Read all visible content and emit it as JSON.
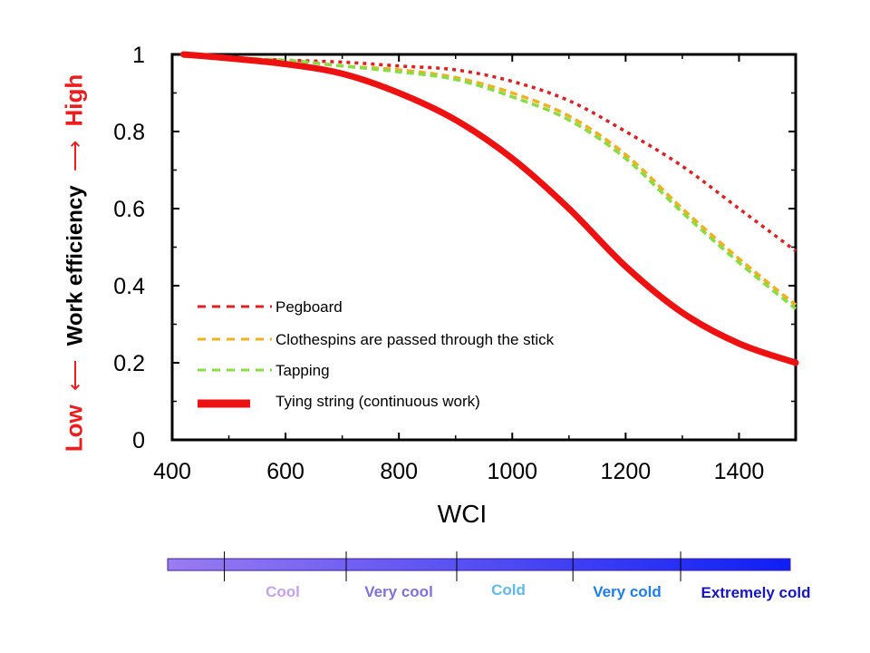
{
  "chart_data": {
    "type": "line",
    "xlabel": "WCI",
    "xlim": [
      400,
      1500
    ],
    "ylim": [
      0,
      1
    ],
    "xticks": [
      400,
      600,
      800,
      1000,
      1200,
      1400
    ],
    "yticks": [
      0,
      0.2,
      0.4,
      0.6,
      0.8,
      1
    ],
    "ylabel": {
      "low": "Low",
      "arrow_low": "⟵",
      "middle": "Work efficiency",
      "arrow_high": "⟶",
      "high": "High"
    },
    "legend_position": "lower-left",
    "series": [
      {
        "name": "Pegboard",
        "color": "#e02020",
        "style": "dotted",
        "x": [
          420,
          500,
          600,
          700,
          800,
          900,
          1000,
          1100,
          1200,
          1300,
          1400,
          1500
        ],
        "y": [
          0.995,
          0.99,
          0.985,
          0.98,
          0.97,
          0.96,
          0.93,
          0.88,
          0.8,
          0.71,
          0.6,
          0.49
        ]
      },
      {
        "name": "Clothespins are passed through the stick",
        "color": "#f0b020",
        "style": "dashed",
        "x": [
          420,
          500,
          600,
          700,
          800,
          900,
          1000,
          1100,
          1200,
          1300,
          1400,
          1500
        ],
        "y": [
          0.995,
          0.99,
          0.985,
          0.97,
          0.96,
          0.94,
          0.9,
          0.84,
          0.74,
          0.6,
          0.47,
          0.35
        ]
      },
      {
        "name": "Tapping",
        "color": "#88dd44",
        "style": "dashed",
        "x": [
          420,
          500,
          600,
          700,
          800,
          900,
          1000,
          1100,
          1200,
          1300,
          1400,
          1500
        ],
        "y": [
          0.995,
          0.99,
          0.985,
          0.97,
          0.955,
          0.935,
          0.89,
          0.83,
          0.73,
          0.59,
          0.46,
          0.34
        ]
      },
      {
        "name": "Tying string (continuous work)",
        "color": "#ee1111",
        "style": "solid",
        "x": [
          420,
          500,
          600,
          700,
          800,
          900,
          1000,
          1100,
          1200,
          1300,
          1400,
          1500
        ],
        "y": [
          1.0,
          0.99,
          0.975,
          0.95,
          0.9,
          0.83,
          0.73,
          0.6,
          0.45,
          0.33,
          0.25,
          0.2
        ]
      }
    ]
  },
  "cold_scale": {
    "gradient_start": "#9a7cf0",
    "gradient_end": "#0d1ff5",
    "dividers": [
      500,
      715,
      910,
      1115,
      1305
    ],
    "labels": [
      {
        "text": "Cool",
        "color": "#c8a0f0"
      },
      {
        "text": "Very cool",
        "color": "#8070e0"
      },
      {
        "text": "Cold",
        "color": "#5fb8f0"
      },
      {
        "text": "Very cold",
        "color": "#1c7ef0"
      },
      {
        "text": "Extremely cold",
        "color": "#1515c8"
      }
    ]
  }
}
